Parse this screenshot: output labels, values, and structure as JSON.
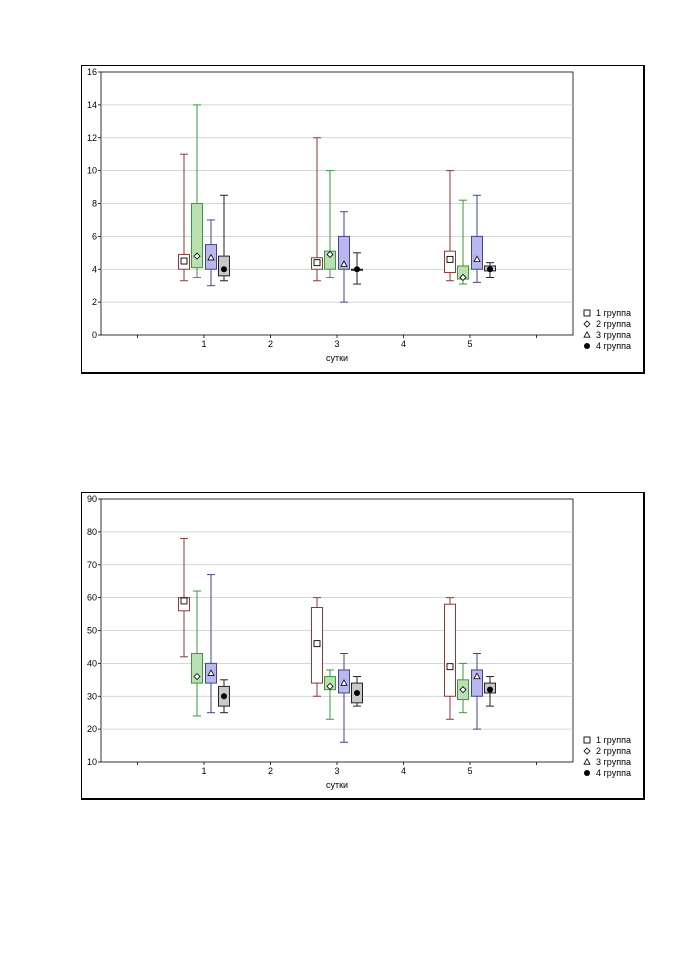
{
  "colors": {
    "group1_stroke": "#8b3a3a",
    "group1_fill": "#ffffff",
    "group2_stroke": "#3a9a3a",
    "group2_fill": "#b8e0b0",
    "group3_stroke": "#444488",
    "group3_fill": "#b8b8ee",
    "group4_stroke": "#222222",
    "group4_fill": "#c8c8c8",
    "grid": "#c8c8c8"
  },
  "legend": [
    "1 группа",
    "2 группа",
    "3 группа",
    "4 группа"
  ],
  "chart_data": [
    {
      "type": "box",
      "xlabel": "сутки",
      "x_ticks": [
        "1",
        "2",
        "3",
        "4",
        "5"
      ],
      "ylim": [
        0,
        16
      ],
      "y_ticks": [
        0,
        2,
        4,
        6,
        8,
        10,
        12,
        14,
        16
      ],
      "grid": true,
      "legend_position": "bottom-right",
      "series": [
        {
          "name": "1 группа",
          "marker": "square",
          "boxes": [
            {
              "x": "1",
              "min": 3.3,
              "q1": 4.0,
              "median": 4.5,
              "q3": 4.9,
              "max": 11.0
            },
            {
              "x": "3",
              "min": 3.3,
              "q1": 4.0,
              "median": 4.4,
              "q3": 4.7,
              "max": 12.0
            },
            {
              "x": "5",
              "min": 3.3,
              "q1": 3.8,
              "median": 4.6,
              "q3": 5.1,
              "max": 10.0
            }
          ]
        },
        {
          "name": "2 группа",
          "marker": "diamond",
          "boxes": [
            {
              "x": "1",
              "min": 3.5,
              "q1": 4.1,
              "median": 4.8,
              "q3": 8.0,
              "max": 14.0
            },
            {
              "x": "3",
              "min": 3.5,
              "q1": 4.0,
              "median": 4.9,
              "q3": 5.1,
              "max": 10.0
            },
            {
              "x": "5",
              "min": 3.1,
              "q1": 3.4,
              "median": 3.5,
              "q3": 4.2,
              "max": 8.2
            }
          ]
        },
        {
          "name": "3 группа",
          "marker": "triangle",
          "boxes": [
            {
              "x": "1",
              "min": 3.0,
              "q1": 4.0,
              "median": 4.7,
              "q3": 5.5,
              "max": 7.0
            },
            {
              "x": "3",
              "min": 2.0,
              "q1": 4.0,
              "median": 4.3,
              "q3": 6.0,
              "max": 7.5
            },
            {
              "x": "5",
              "min": 3.2,
              "q1": 4.0,
              "median": 4.6,
              "q3": 6.0,
              "max": 8.5
            }
          ]
        },
        {
          "name": "4 группа",
          "marker": "dot",
          "boxes": [
            {
              "x": "1",
              "min": 3.3,
              "q1": 3.6,
              "median": 4.0,
              "q3": 4.8,
              "max": 8.5
            },
            {
              "x": "3",
              "min": 3.1,
              "q1": 4.0,
              "median": 4.0,
              "q3": 4.0,
              "max": 5.0
            },
            {
              "x": "5",
              "min": 3.5,
              "q1": 3.9,
              "median": 4.0,
              "q3": 4.2,
              "max": 4.4
            }
          ]
        }
      ]
    },
    {
      "type": "box",
      "xlabel": "сутки",
      "x_ticks": [
        "1",
        "2",
        "3",
        "4",
        "5"
      ],
      "ylim": [
        10,
        90
      ],
      "y_ticks": [
        10,
        20,
        30,
        40,
        50,
        60,
        70,
        80,
        90
      ],
      "grid": true,
      "legend_position": "bottom-right",
      "series": [
        {
          "name": "1 группа",
          "marker": "square",
          "boxes": [
            {
              "x": "1",
              "min": 42,
              "q1": 56,
              "median": 59,
              "q3": 60,
              "max": 78
            },
            {
              "x": "3",
              "min": 30,
              "q1": 34,
              "median": 46,
              "q3": 57,
              "max": 60
            },
            {
              "x": "5",
              "min": 23,
              "q1": 30,
              "median": 39,
              "q3": 58,
              "max": 60
            }
          ]
        },
        {
          "name": "2 группа",
          "marker": "diamond",
          "boxes": [
            {
              "x": "1",
              "min": 24,
              "q1": 34,
              "median": 36,
              "q3": 43,
              "max": 62
            },
            {
              "x": "3",
              "min": 23,
              "q1": 32,
              "median": 33,
              "q3": 36,
              "max": 38
            },
            {
              "x": "5",
              "min": 25,
              "q1": 29,
              "median": 32,
              "q3": 35,
              "max": 40
            }
          ]
        },
        {
          "name": "3 группа",
          "marker": "triangle",
          "boxes": [
            {
              "x": "1",
              "min": 25,
              "q1": 34,
              "median": 37,
              "q3": 40,
              "max": 67
            },
            {
              "x": "3",
              "min": 16,
              "q1": 31,
              "median": 34,
              "q3": 38,
              "max": 43
            },
            {
              "x": "5",
              "min": 20,
              "q1": 30,
              "median": 36,
              "q3": 38,
              "max": 43
            }
          ]
        },
        {
          "name": "4 группа",
          "marker": "dot",
          "boxes": [
            {
              "x": "1",
              "min": 25,
              "q1": 27,
              "median": 30,
              "q3": 33,
              "max": 35
            },
            {
              "x": "3",
              "min": 27,
              "q1": 28,
              "median": 31,
              "q3": 34,
              "max": 36
            },
            {
              "x": "5",
              "min": 27,
              "q1": 31,
              "median": 32,
              "q3": 34,
              "max": 36
            }
          ]
        }
      ]
    }
  ]
}
